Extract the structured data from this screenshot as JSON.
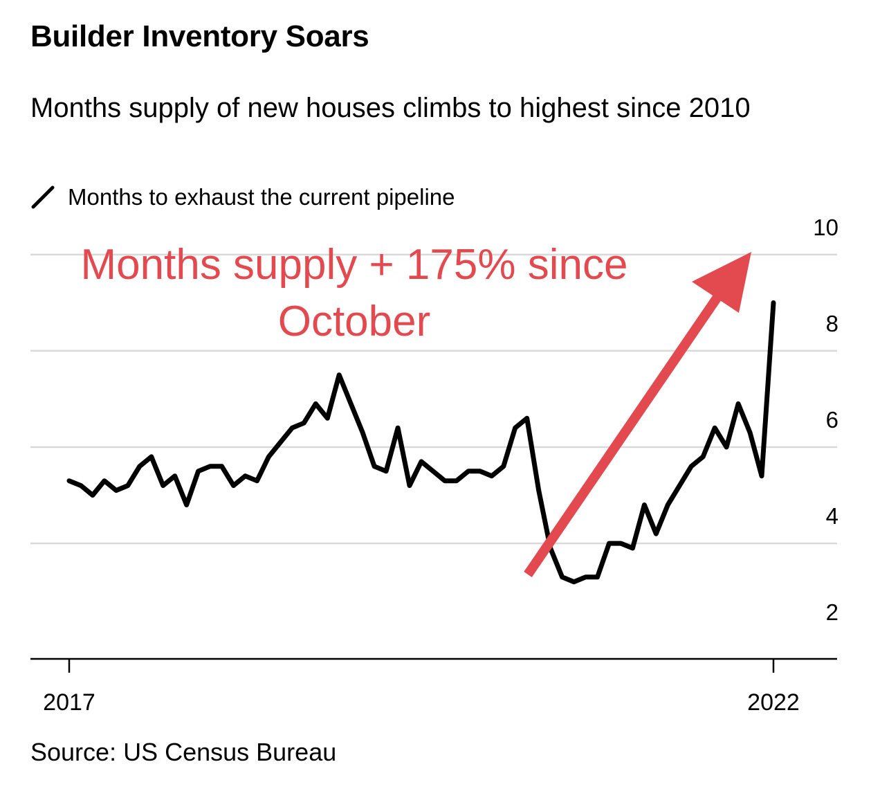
{
  "title": "Builder Inventory Soars",
  "subtitle": "Months supply of new houses climbs to highest since 2010",
  "legend": {
    "label": "Months to exhaust the current pipeline",
    "color": "#000000"
  },
  "annotation": {
    "text": "Months supply + 175% since October",
    "lines": [
      "Months supply + 175% since",
      "October"
    ],
    "color": "#e24a50"
  },
  "source": "Source: US Census Bureau",
  "chart_data": {
    "type": "line",
    "title": "Builder Inventory Soars",
    "ylabel": "",
    "xlabel": "",
    "ylim": [
      1.6,
      10.4
    ],
    "grid": true,
    "legend_position": "top-left",
    "x_start": 2017.0,
    "x_end": 2022.0,
    "x_ticks": [
      {
        "value": 2017,
        "label": "2017"
      },
      {
        "value": 2022,
        "label": "2022"
      }
    ],
    "y_ticks": [
      {
        "value": 2,
        "label": "2"
      },
      {
        "value": 4,
        "label": "4"
      },
      {
        "value": 6,
        "label": "6"
      },
      {
        "value": 8,
        "label": "8"
      },
      {
        "value": 10,
        "label": "10"
      }
    ],
    "series": [
      {
        "name": "Months to exhaust the current pipeline",
        "color": "#000000",
        "x": [
          2017.0,
          2017.0833,
          2017.1667,
          2017.25,
          2017.3333,
          2017.4167,
          2017.5,
          2017.5833,
          2017.6667,
          2017.75,
          2017.8333,
          2017.9167,
          2018.0,
          2018.0833,
          2018.1667,
          2018.25,
          2018.3333,
          2018.4167,
          2018.5,
          2018.5833,
          2018.6667,
          2018.75,
          2018.8333,
          2018.9167,
          2019.0,
          2019.0833,
          2019.1667,
          2019.25,
          2019.3333,
          2019.4167,
          2019.5,
          2019.5833,
          2019.6667,
          2019.75,
          2019.8333,
          2019.9167,
          2020.0,
          2020.0833,
          2020.1667,
          2020.25,
          2020.3333,
          2020.4167,
          2020.5,
          2020.5833,
          2020.6667,
          2020.75,
          2020.8333,
          2020.9167,
          2021.0,
          2021.0833,
          2021.1667,
          2021.25,
          2021.3333,
          2021.4167,
          2021.5,
          2021.5833,
          2021.6667,
          2021.75,
          2021.8333,
          2021.9167,
          2022.0
        ],
        "y": [
          5.3,
          5.2,
          5.0,
          5.3,
          5.1,
          5.2,
          5.6,
          5.8,
          5.2,
          5.4,
          4.8,
          5.5,
          5.6,
          5.6,
          5.2,
          5.4,
          5.3,
          5.8,
          6.1,
          6.4,
          6.5,
          6.9,
          6.6,
          7.5,
          6.9,
          6.3,
          5.6,
          5.5,
          6.4,
          5.2,
          5.7,
          5.5,
          5.3,
          5.3,
          5.5,
          5.5,
          5.4,
          5.6,
          6.4,
          6.6,
          5.1,
          3.9,
          3.3,
          3.2,
          3.3,
          3.3,
          4.0,
          4.0,
          3.9,
          4.8,
          4.2,
          4.8,
          5.2,
          5.6,
          5.8,
          6.4,
          6.0,
          6.9,
          6.3,
          5.4,
          9.0
        ]
      }
    ]
  }
}
